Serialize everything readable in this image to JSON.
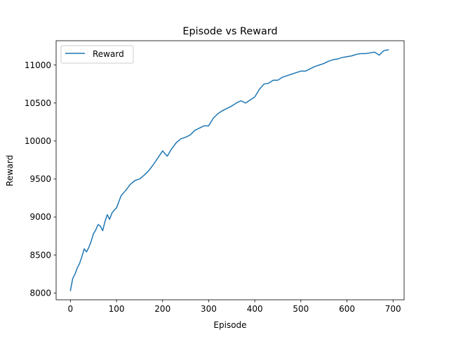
{
  "chart_data": {
    "type": "line",
    "title": "Episode vs Reward",
    "xlabel": "Episode",
    "ylabel": "Reward",
    "xlim": [
      -31,
      724
    ],
    "ylim": [
      7910,
      11320
    ],
    "xticks": [
      0,
      100,
      200,
      300,
      400,
      500,
      600,
      700
    ],
    "yticks": [
      8000,
      8500,
      9000,
      9500,
      10000,
      10500,
      11000
    ],
    "xtick_labels": [
      "0",
      "100",
      "200",
      "300",
      "400",
      "500",
      "600",
      "700"
    ],
    "ytick_labels": [
      "8000",
      "8500",
      "9000",
      "9500",
      "10000",
      "10500",
      "11000"
    ],
    "legend": {
      "position": "upper-left",
      "entries": [
        "Reward"
      ]
    },
    "grid": false,
    "series": [
      {
        "name": "Reward",
        "color": "#1f77b4",
        "x": [
          0,
          5,
          10,
          15,
          20,
          25,
          30,
          35,
          40,
          45,
          50,
          55,
          60,
          65,
          70,
          75,
          80,
          85,
          90,
          95,
          100,
          110,
          120,
          130,
          140,
          150,
          160,
          170,
          180,
          190,
          200,
          210,
          220,
          230,
          240,
          250,
          260,
          270,
          280,
          290,
          300,
          310,
          320,
          330,
          340,
          350,
          360,
          370,
          380,
          390,
          400,
          410,
          420,
          430,
          440,
          450,
          460,
          470,
          480,
          490,
          500,
          510,
          520,
          530,
          540,
          550,
          560,
          570,
          580,
          590,
          600,
          610,
          620,
          630,
          640,
          650,
          660,
          670,
          680,
          690
        ],
        "y": [
          8030,
          8190,
          8250,
          8330,
          8390,
          8480,
          8580,
          8540,
          8600,
          8680,
          8780,
          8830,
          8900,
          8880,
          8820,
          8940,
          9030,
          8970,
          9050,
          9090,
          9120,
          9280,
          9350,
          9430,
          9480,
          9500,
          9550,
          9610,
          9690,
          9780,
          9870,
          9800,
          9900,
          9980,
          10030,
          10050,
          10080,
          10140,
          10170,
          10200,
          10200,
          10300,
          10360,
          10400,
          10430,
          10460,
          10500,
          10530,
          10500,
          10540,
          10580,
          10680,
          10750,
          10760,
          10800,
          10800,
          10840,
          10860,
          10880,
          10900,
          10920,
          10920,
          10950,
          10980,
          11000,
          11020,
          11050,
          11070,
          11080,
          11100,
          11110,
          11120,
          11140,
          11150,
          11150,
          11160,
          11170,
          11130,
          11190,
          11200
        ]
      }
    ]
  }
}
